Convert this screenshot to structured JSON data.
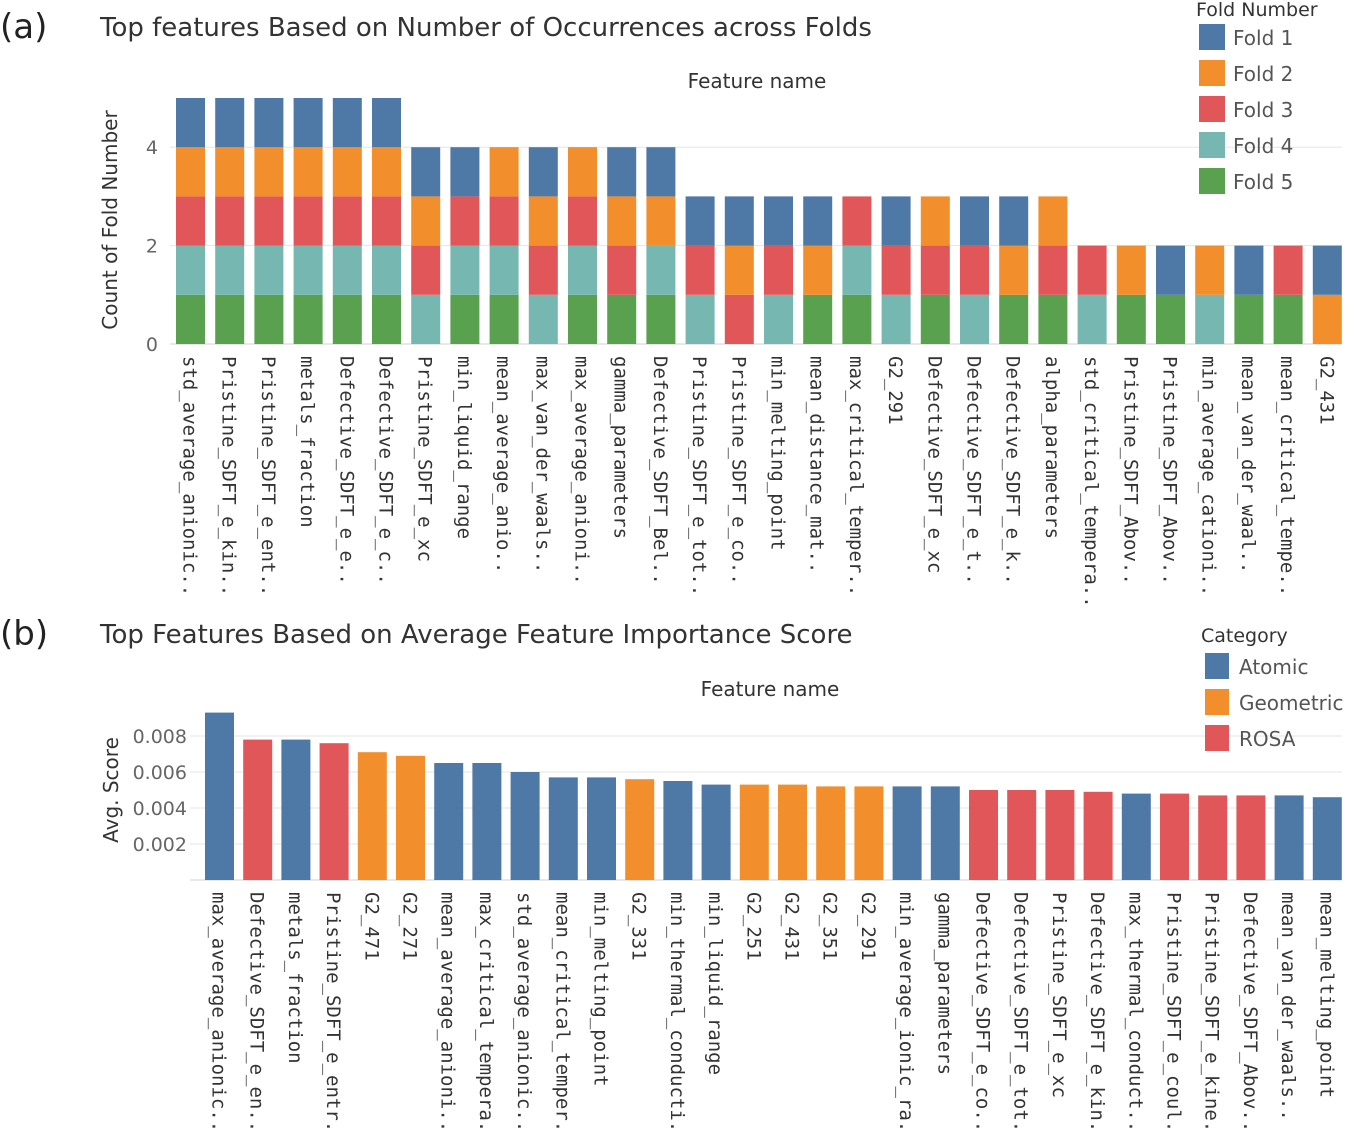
{
  "chart_data": [
    {
      "type": "bar",
      "stacked": true,
      "panel_label": "(a)",
      "title": "Top features Based on Number of Occurrences across Folds",
      "xlabel": "Feature name",
      "ylabel": "Count of Fold Number",
      "ylim": [
        0,
        5
      ],
      "yticks": [
        "0",
        "2",
        "4"
      ],
      "legend": {
        "title": "Fold Number",
        "position": "top-right",
        "entries": [
          "Fold 1",
          "Fold 2",
          "Fold 3",
          "Fold 4",
          "Fold 5"
        ],
        "colors": [
          "#4e79a7",
          "#f28e2b",
          "#e15759",
          "#76b7b2",
          "#59a14f"
        ]
      },
      "categories": [
        "std_average_anionic..",
        "Pristine_SDFT_e_kin..",
        "Pristine_SDFT_e_ent..",
        "metals_fraction",
        "Defective_SDFT_e_e..",
        "Defective_SDFT_e_c..",
        "Pristine_SDFT_e_xc",
        "min_liquid_range",
        "mean_average_anio..",
        "max_van_der_waals..",
        "max_average_anioni..",
        "gamma_parameters",
        "Defective_SDFT_Bel..",
        "Pristine_SDFT_e_tot..",
        "Pristine_SDFT_e_co..",
        "min_melting_point",
        "mean_distance_mat..",
        "max_critical_temper..",
        "G2_291",
        "Defective_SDFT_e_xc",
        "Defective_SDFT_e_t..",
        "Defective_SDFT_e_k..",
        "alpha_parameters",
        "std_critical_tempera..",
        "Pristine_SDFT_Abov..",
        "Pristine_SDFT_Abov..",
        "min_average_cationi..",
        "mean_van_der_waal..",
        "mean_critical_tempe..",
        "G2_431"
      ],
      "series": [
        {
          "name": "Fold 5",
          "values": [
            1,
            1,
            1,
            1,
            1,
            1,
            0,
            1,
            1,
            0,
            1,
            1,
            1,
            0,
            0,
            0,
            1,
            1,
            0,
            1,
            0,
            1,
            1,
            0,
            1,
            1,
            0,
            1,
            1,
            0
          ]
        },
        {
          "name": "Fold 4",
          "values": [
            1,
            1,
            1,
            1,
            1,
            1,
            1,
            1,
            1,
            1,
            1,
            0,
            1,
            1,
            0,
            1,
            0,
            1,
            1,
            0,
            1,
            0,
            0,
            1,
            0,
            0,
            1,
            0,
            0,
            0
          ]
        },
        {
          "name": "Fold 3",
          "values": [
            1,
            1,
            1,
            1,
            1,
            1,
            1,
            1,
            1,
            1,
            1,
            1,
            0,
            1,
            1,
            1,
            0,
            1,
            1,
            1,
            1,
            0,
            1,
            1,
            0,
            0,
            0,
            0,
            1,
            0
          ]
        },
        {
          "name": "Fold 2",
          "values": [
            1,
            1,
            1,
            1,
            1,
            1,
            1,
            0,
            1,
            1,
            1,
            1,
            1,
            0,
            1,
            0,
            1,
            0,
            0,
            1,
            0,
            1,
            1,
            0,
            1,
            0,
            1,
            0,
            0,
            1
          ]
        },
        {
          "name": "Fold 1",
          "values": [
            1,
            1,
            1,
            1,
            1,
            1,
            1,
            1,
            0,
            1,
            0,
            1,
            1,
            1,
            1,
            1,
            1,
            0,
            1,
            0,
            1,
            1,
            0,
            0,
            0,
            1,
            0,
            1,
            0,
            1
          ]
        }
      ]
    },
    {
      "type": "bar",
      "panel_label": "(b)",
      "title": "Top Features Based on Average Feature Importance Score",
      "xlabel": "Feature name",
      "ylabel": "Avg. Score",
      "ylim": [
        0,
        0.0093
      ],
      "yticks": [
        "0.002",
        "0.004",
        "0.006",
        "0.008"
      ],
      "legend": {
        "title": "Category",
        "position": "top-right",
        "entries": [
          "Atomic",
          "Geometric",
          "ROSA"
        ],
        "colors": [
          "#4e79a7",
          "#f28e2b",
          "#e15759"
        ]
      },
      "categories": [
        "max_average_anionic..",
        "Defective_SDFT_e_en..",
        "metals_fraction",
        "Pristine_SDFT_e_entr..",
        "G2_471",
        "G2_271",
        "mean_average_anioni..",
        "max_critical_tempera..",
        "std_average_anionic..",
        "mean_critical_temper..",
        "min_melting_point",
        "G2_331",
        "min_thermal_conducti..",
        "min_liquid_range",
        "G2_251",
        "G2_431",
        "G2_351",
        "G2_291",
        "min_average_ionic_ra..",
        "gamma_parameters",
        "Defective_SDFT_e_co..",
        "Defective_SDFT_e_tot..",
        "Pristine_SDFT_e_xc",
        "Defective_SDFT_e_kin..",
        "max_thermal_conduct..",
        "Pristine_SDFT_e_coul..",
        "Pristine_SDFT_e_kine..",
        "Defective_SDFT_Abov..",
        "mean_van_der_waals..",
        "mean_melting_point"
      ],
      "values": [
        0.0093,
        0.0078,
        0.0078,
        0.0076,
        0.0071,
        0.0069,
        0.0065,
        0.0065,
        0.006,
        0.0057,
        0.0057,
        0.0056,
        0.0055,
        0.0053,
        0.0053,
        0.0053,
        0.0052,
        0.0052,
        0.0052,
        0.0052,
        0.005,
        0.005,
        0.005,
        0.0049,
        0.0048,
        0.0048,
        0.0047,
        0.0047,
        0.0047,
        0.0046
      ],
      "bar_categories": [
        "Atomic",
        "ROSA",
        "Atomic",
        "ROSA",
        "Geometric",
        "Geometric",
        "Atomic",
        "Atomic",
        "Atomic",
        "Atomic",
        "Atomic",
        "Geometric",
        "Atomic",
        "Atomic",
        "Geometric",
        "Geometric",
        "Geometric",
        "Geometric",
        "Atomic",
        "Atomic",
        "ROSA",
        "ROSA",
        "ROSA",
        "ROSA",
        "Atomic",
        "ROSA",
        "ROSA",
        "ROSA",
        "Atomic",
        "Atomic"
      ]
    }
  ]
}
